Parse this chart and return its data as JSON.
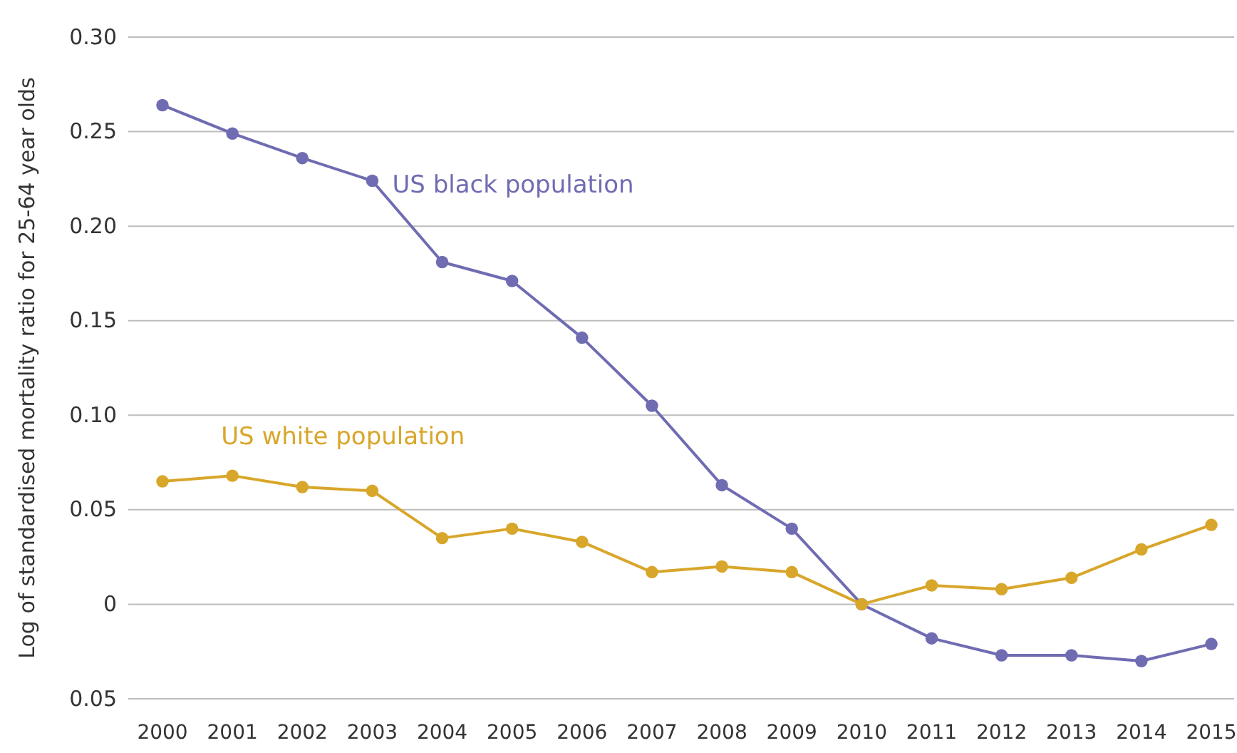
{
  "chart_data": {
    "type": "line",
    "ylabel": "Log of standardised mortality ratio for 25-64 year olds",
    "categories": [
      "2000",
      "2001",
      "2002",
      "2003",
      "2004",
      "2005",
      "2006",
      "2007",
      "2008",
      "2009",
      "2010",
      "2011",
      "2012",
      "2013",
      "2014",
      "2015"
    ],
    "series": [
      {
        "name": "US black population",
        "color": "#6f6cb2",
        "values": [
          0.264,
          0.249,
          0.236,
          0.224,
          0.181,
          0.171,
          0.141,
          0.105,
          0.063,
          0.04,
          0,
          -0.018,
          -0.027,
          -0.027,
          -0.03,
          -0.021
        ]
      },
      {
        "name": "US white population",
        "color": "#d8a62a",
        "values": [
          0.065,
          0.068,
          0.062,
          0.06,
          0.035,
          0.04,
          0.033,
          0.017,
          0.02,
          0.017,
          0,
          0.01,
          0.008,
          0.014,
          0.029,
          0.042
        ]
      }
    ],
    "ylim": [
      -0.05,
      0.3
    ],
    "yticks": [
      {
        "value": -0.05,
        "label": "0.05"
      },
      {
        "value": 0,
        "label": "0"
      },
      {
        "value": 0.05,
        "label": "0.05"
      },
      {
        "value": 0.1,
        "label": "0.10"
      },
      {
        "value": 0.15,
        "label": "0.15"
      },
      {
        "value": 0.2,
        "label": "0.20"
      },
      {
        "value": 0.25,
        "label": "0.25"
      },
      {
        "value": 0.3,
        "label": "0.30"
      }
    ],
    "grid": "y",
    "marker": "circle",
    "line_style": "solid"
  }
}
